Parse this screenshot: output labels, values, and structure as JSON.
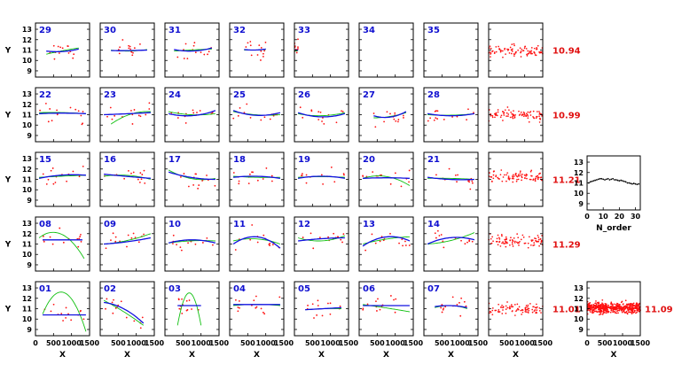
{
  "chart_data": {
    "type": "scatter",
    "description_note": "",
    "y_axis": {
      "label": "Y",
      "ticks": [
        "9",
        "10",
        "11",
        "12",
        "13"
      ],
      "ylim": [
        8.4,
        13.6
      ]
    },
    "x_axis": {
      "label": "X",
      "ticks_first": [
        "0",
        "500",
        "1000",
        "1500"
      ],
      "ticks_other": [
        "500",
        "1000",
        "1500"
      ],
      "xlim": [
        0,
        1500
      ]
    },
    "order_panel": {
      "x_label": "N_order",
      "x_ticks": [
        "0",
        "10",
        "20",
        "30"
      ],
      "xlim": [
        0,
        33
      ],
      "y_ticks": [
        "9",
        "10",
        "11",
        "12",
        "13"
      ],
      "ylim": [
        8.4,
        13.6
      ],
      "points": [
        [
          1,
          11.0
        ],
        [
          2,
          11.1
        ],
        [
          3,
          11.15
        ],
        [
          4,
          11.2
        ],
        [
          5,
          11.25
        ],
        [
          6,
          11.3
        ],
        [
          7,
          11.35
        ],
        [
          8,
          11.4
        ],
        [
          9,
          11.4
        ],
        [
          10,
          11.35
        ],
        [
          11,
          11.3
        ],
        [
          12,
          11.35
        ],
        [
          13,
          11.4
        ],
        [
          14,
          11.3
        ],
        [
          15,
          11.35
        ],
        [
          16,
          11.4
        ],
        [
          17,
          11.3
        ],
        [
          18,
          11.3
        ],
        [
          19,
          11.25
        ],
        [
          20,
          11.2
        ],
        [
          21,
          11.25
        ],
        [
          22,
          11.2
        ],
        [
          23,
          11.15
        ],
        [
          24,
          11.1
        ],
        [
          25,
          11.0
        ],
        [
          26,
          11.0
        ],
        [
          27,
          10.95
        ],
        [
          28,
          10.9
        ],
        [
          29,
          10.95
        ],
        [
          30,
          10.9
        ],
        [
          31,
          10.85
        ],
        [
          32,
          10.9
        ]
      ]
    },
    "rows": [
      {
        "orders": [
          "29",
          "30",
          "31",
          "32",
          "33",
          "34",
          "35"
        ],
        "combined_value": "10.94"
      },
      {
        "orders": [
          "22",
          "23",
          "24",
          "25",
          "26",
          "27",
          "28"
        ],
        "combined_value": "10.99"
      },
      {
        "orders": [
          "15",
          "16",
          "17",
          "18",
          "19",
          "20",
          "21"
        ],
        "combined_value": "11.21"
      },
      {
        "orders": [
          "08",
          "09",
          "10",
          "11",
          "12",
          "13",
          "14"
        ],
        "combined_value": "11.29"
      },
      {
        "orders": [
          "01",
          "02",
          "03",
          "04",
          "05",
          "06",
          "07"
        ],
        "combined_value": "11.01"
      }
    ],
    "total_value": "11.09",
    "fits": {
      "29": {
        "blue": [
          [
            300,
            10.9
          ],
          [
            700,
            10.85
          ],
          [
            1200,
            11.1
          ]
        ],
        "green": [
          [
            300,
            10.6
          ],
          [
            700,
            10.9
          ],
          [
            1200,
            11.2
          ]
        ]
      },
      "30": {
        "blue": [
          [
            300,
            10.95
          ],
          [
            800,
            10.95
          ],
          [
            1300,
            11.0
          ]
        ],
        "green": [
          [
            300,
            11.0
          ],
          [
            800,
            10.9
          ],
          [
            1300,
            11.05
          ]
        ]
      },
      "31": {
        "blue": [
          [
            250,
            11.05
          ],
          [
            700,
            10.9
          ],
          [
            1300,
            11.2
          ]
        ],
        "green": [
          [
            250,
            10.9
          ],
          [
            700,
            11.0
          ],
          [
            1300,
            11.1
          ]
        ]
      },
      "32": {
        "blue": [
          [
            400,
            11.05
          ],
          [
            700,
            11.0
          ],
          [
            1000,
            11.1
          ]
        ],
        "green": [
          [
            400,
            11.0
          ],
          [
            700,
            11.0
          ],
          [
            1000,
            11.05
          ]
        ]
      },
      "33": {
        "blue": [
          [
            0,
            11.0
          ],
          [
            100,
            11.0
          ]
        ],
        "green": [
          [
            0,
            10.9
          ],
          [
            100,
            10.95
          ]
        ]
      },
      "34": null,
      "35": null,
      "22": {
        "blue": [
          [
            100,
            11.1
          ],
          [
            800,
            11.15
          ],
          [
            1400,
            11.1
          ]
        ],
        "green": [
          [
            100,
            11.2
          ],
          [
            800,
            11.2
          ],
          [
            1400,
            11.1
          ]
        ]
      },
      "23": {
        "blue": [
          [
            100,
            11.0
          ],
          [
            800,
            11.1
          ],
          [
            1400,
            11.2
          ]
        ],
        "green": [
          [
            300,
            10.1
          ],
          [
            800,
            11.0
          ],
          [
            1400,
            11.3
          ]
        ]
      },
      "24": {
        "blue": [
          [
            100,
            11.1
          ],
          [
            700,
            10.9
          ],
          [
            1400,
            11.4
          ]
        ],
        "green": [
          [
            100,
            11.3
          ],
          [
            700,
            11.0
          ],
          [
            1400,
            11.1
          ]
        ]
      },
      "25": {
        "blue": [
          [
            100,
            11.4
          ],
          [
            700,
            10.95
          ],
          [
            1400,
            11.2
          ]
        ],
        "green": [
          [
            100,
            11.3
          ],
          [
            700,
            11.0
          ],
          [
            1400,
            11.0
          ]
        ]
      },
      "26": {
        "blue": [
          [
            100,
            11.2
          ],
          [
            700,
            10.8
          ],
          [
            1400,
            11.1
          ]
        ],
        "green": [
          [
            100,
            11.1
          ],
          [
            700,
            10.9
          ],
          [
            1400,
            11.2
          ]
        ]
      },
      "27": {
        "blue": [
          [
            400,
            10.9
          ],
          [
            800,
            10.75
          ],
          [
            1300,
            11.3
          ]
        ],
        "green": [
          [
            400,
            10.7
          ],
          [
            800,
            10.8
          ],
          [
            1300,
            11.2
          ]
        ]
      },
      "28": {
        "blue": [
          [
            100,
            11.1
          ],
          [
            700,
            10.9
          ],
          [
            1400,
            11.1
          ]
        ],
        "green": [
          [
            100,
            11.0
          ],
          [
            700,
            10.95
          ],
          [
            1400,
            11.1
          ]
        ]
      },
      "15": {
        "blue": [
          [
            100,
            11.1
          ],
          [
            700,
            11.4
          ],
          [
            1400,
            11.4
          ]
        ],
        "green": [
          [
            100,
            11.2
          ],
          [
            700,
            11.3
          ],
          [
            1400,
            11.4
          ]
        ]
      },
      "16": {
        "blue": [
          [
            100,
            11.5
          ],
          [
            700,
            11.3
          ],
          [
            1400,
            11.1
          ]
        ],
        "green": [
          [
            100,
            11.3
          ],
          [
            700,
            11.4
          ],
          [
            1400,
            11.0
          ]
        ]
      },
      "17": {
        "blue": [
          [
            100,
            11.7
          ],
          [
            700,
            11.2
          ],
          [
            1400,
            11.0
          ]
        ],
        "green": [
          [
            100,
            11.9
          ],
          [
            700,
            11.1
          ],
          [
            1400,
            11.1
          ]
        ]
      },
      "18": {
        "blue": [
          [
            100,
            11.2
          ],
          [
            700,
            11.3
          ],
          [
            1400,
            11.1
          ]
        ],
        "green": [
          [
            100,
            11.3
          ],
          [
            700,
            11.2
          ],
          [
            1400,
            11.2
          ]
        ]
      },
      "19": {
        "blue": [
          [
            100,
            11.1
          ],
          [
            700,
            11.3
          ],
          [
            1400,
            11.1
          ]
        ],
        "green": [
          [
            100,
            11.2
          ],
          [
            700,
            11.25
          ],
          [
            1400,
            11.2
          ]
        ]
      },
      "20": {
        "blue": [
          [
            100,
            11.1
          ],
          [
            700,
            11.15
          ],
          [
            1400,
            11.1
          ]
        ],
        "green": [
          [
            100,
            11.1
          ],
          [
            700,
            11.3
          ],
          [
            1400,
            10.4
          ]
        ]
      },
      "21": {
        "blue": [
          [
            100,
            11.2
          ],
          [
            700,
            11.0
          ],
          [
            1400,
            11.0
          ]
        ],
        "green": [
          [
            100,
            11.1
          ],
          [
            700,
            11.1
          ],
          [
            1400,
            11.0
          ]
        ]
      },
      "08": {
        "blue": [
          [
            200,
            11.4
          ],
          [
            800,
            11.4
          ],
          [
            1300,
            11.4
          ]
        ],
        "green": [
          [
            100,
            11.6
          ],
          [
            800,
            11.8
          ],
          [
            1350,
            9.6
          ]
        ]
      },
      "09": {
        "blue": [
          [
            100,
            11.0
          ],
          [
            700,
            11.2
          ],
          [
            1400,
            11.6
          ]
        ],
        "green": [
          [
            100,
            11.0
          ],
          [
            700,
            11.3
          ],
          [
            1400,
            12.0
          ]
        ]
      },
      "10": {
        "blue": [
          [
            100,
            11.1
          ],
          [
            700,
            11.4
          ],
          [
            1400,
            11.1
          ]
        ],
        "green": [
          [
            100,
            11.1
          ],
          [
            700,
            11.3
          ],
          [
            1400,
            11.3
          ]
        ]
      },
      "11": {
        "blue": [
          [
            100,
            11.0
          ],
          [
            700,
            11.7
          ],
          [
            1400,
            10.6
          ]
        ],
        "green": [
          [
            100,
            11.3
          ],
          [
            700,
            11.5
          ],
          [
            1400,
            11.0
          ]
        ]
      },
      "12": {
        "blue": [
          [
            100,
            11.3
          ],
          [
            700,
            11.5
          ],
          [
            1400,
            11.6
          ]
        ],
        "green": [
          [
            100,
            11.6
          ],
          [
            700,
            11.3
          ],
          [
            1400,
            11.8
          ]
        ]
      },
      "13": {
        "blue": [
          [
            100,
            10.8
          ],
          [
            800,
            11.7
          ],
          [
            1400,
            11.3
          ]
        ],
        "green": [
          [
            100,
            11.0
          ],
          [
            800,
            11.5
          ],
          [
            1400,
            11.7
          ]
        ]
      },
      "14": {
        "blue": [
          [
            100,
            11.0
          ],
          [
            700,
            11.6
          ],
          [
            1400,
            11.4
          ]
        ],
        "green": [
          [
            100,
            11.0
          ],
          [
            700,
            11.3
          ],
          [
            1400,
            12.1
          ]
        ]
      },
      "01": {
        "blue": [
          [
            200,
            10.4
          ],
          [
            800,
            10.4
          ],
          [
            1400,
            10.4
          ]
        ],
        "green": [
          [
            200,
            10.5
          ],
          [
            700,
            12.6
          ],
          [
            1400,
            8.8
          ]
        ]
      },
      "02": {
        "blue": [
          [
            100,
            11.6
          ],
          [
            700,
            10.9
          ],
          [
            1200,
            9.6
          ]
        ],
        "green": [
          [
            100,
            11.8
          ],
          [
            700,
            10.6
          ],
          [
            1200,
            9.4
          ]
        ]
      },
      "03": {
        "blue": [
          [
            350,
            11.3
          ],
          [
            700,
            11.3
          ],
          [
            1000,
            11.3
          ]
        ],
        "green": [
          [
            350,
            9.4
          ],
          [
            700,
            12.5
          ],
          [
            1000,
            9.4
          ]
        ]
      },
      "04": {
        "blue": [
          [
            100,
            11.4
          ],
          [
            700,
            11.4
          ],
          [
            1400,
            11.4
          ]
        ],
        "green": [
          [
            100,
            11.3
          ],
          [
            700,
            11.4
          ],
          [
            1400,
            11.3
          ]
        ]
      },
      "05": {
        "blue": [
          [
            300,
            10.9
          ],
          [
            800,
            11.0
          ],
          [
            1300,
            11.1
          ]
        ],
        "green": [
          [
            300,
            10.9
          ],
          [
            800,
            11.0
          ],
          [
            1300,
            11.0
          ]
        ]
      },
      "06": {
        "blue": [
          [
            100,
            11.3
          ],
          [
            700,
            11.3
          ],
          [
            1400,
            11.3
          ]
        ],
        "green": [
          [
            100,
            11.4
          ],
          [
            700,
            11.1
          ],
          [
            1400,
            10.7
          ]
        ]
      },
      "07": {
        "blue": [
          [
            300,
            11.2
          ],
          [
            700,
            11.3
          ],
          [
            1200,
            11.1
          ]
        ],
        "green": [
          [
            300,
            11.1
          ],
          [
            700,
            11.3
          ],
          [
            1200,
            11.0
          ]
        ]
      }
    }
  }
}
